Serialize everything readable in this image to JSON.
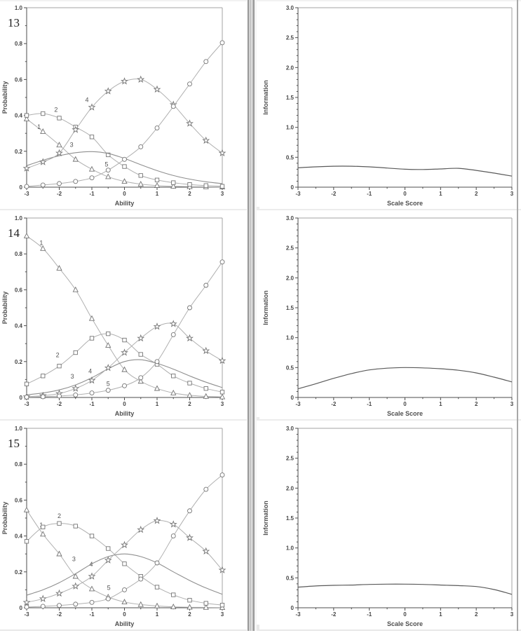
{
  "page": {
    "background": "#ffffff"
  },
  "colors": {
    "axis": "#4d4d4d",
    "frame": "#a3a3a3",
    "marker_stroke": "#747474",
    "marker_fill": "#ffffff",
    "marker_series_line": "#b0b0b0",
    "smooth_series_line": "#8f8f8f",
    "info_series_line": "#5a5a5a",
    "tick_text": "#454545",
    "axis_title_text": "#4f4f4f",
    "curve_label_text": "#555555",
    "item_number_text": "#1f1f1f"
  },
  "chart_data": [
    {
      "name": "item-13-category-curves",
      "type": "line",
      "item_label": "13",
      "xlabel": "Ability",
      "ylabel": "Probability",
      "xlim": [
        -3,
        3
      ],
      "ylim": [
        0,
        1
      ],
      "x_tick_values": [
        -3,
        -2,
        -1,
        0,
        1,
        2,
        3
      ],
      "x_tick_labels": [
        "-3",
        "-2",
        "-1",
        "0",
        "1",
        "2",
        "3"
      ],
      "y_tick_values": [
        0,
        0.2,
        0.4,
        0.6,
        0.8,
        1.0
      ],
      "y_tick_labels": [
        "0",
        "0.2",
        "0.4",
        "0.6",
        "0.8",
        "1.0"
      ],
      "x_minor_step": 0.5,
      "y_minor_step": 0.1,
      "grid": false,
      "legend": "none",
      "x": [
        -3,
        -2.5,
        -2,
        -1.5,
        -1,
        -0.5,
        0,
        0.5,
        1,
        1.5,
        2,
        2.5,
        3
      ],
      "series": [
        {
          "name": "1",
          "marker": "triangle",
          "values": [
            0.38,
            0.31,
            0.235,
            0.155,
            0.1,
            0.058,
            0.032,
            0.017,
            0.009,
            0.005,
            0.003,
            0.002,
            0.001
          ],
          "label_at": [
            -2.62,
            0.325
          ]
        },
        {
          "name": "2",
          "marker": "square",
          "values": [
            0.4,
            0.41,
            0.385,
            0.335,
            0.28,
            0.18,
            0.115,
            0.065,
            0.04,
            0.025,
            0.015,
            0.009,
            0.005
          ],
          "label_at": [
            -2.1,
            0.42
          ]
        },
        {
          "name": "3",
          "marker": "none",
          "values": [
            0.12,
            0.15,
            0.175,
            0.192,
            0.198,
            0.188,
            0.16,
            0.125,
            0.092,
            0.065,
            0.045,
            0.03,
            0.02
          ],
          "label_at": [
            -1.62,
            0.225
          ]
        },
        {
          "name": "4",
          "marker": "star",
          "values": [
            0.105,
            0.14,
            0.19,
            0.32,
            0.445,
            0.535,
            0.59,
            0.6,
            0.545,
            0.46,
            0.355,
            0.26,
            0.19
          ],
          "label_at": [
            -1.15,
            0.475
          ]
        },
        {
          "name": "5",
          "marker": "circle",
          "values": [
            0.004,
            0.012,
            0.02,
            0.032,
            0.052,
            0.095,
            0.155,
            0.225,
            0.33,
            0.45,
            0.575,
            0.7,
            0.805
          ],
          "label_at": [
            -0.55,
            0.115
          ]
        }
      ]
    },
    {
      "name": "item-13-information",
      "type": "line",
      "xlabel": "Scale Score",
      "ylabel": "Information",
      "xlim": [
        -3,
        3
      ],
      "ylim": [
        0,
        3
      ],
      "x_tick_values": [
        -3,
        -2,
        -1,
        0,
        1,
        2,
        3
      ],
      "x_tick_labels": [
        "-3",
        "-2",
        "-1",
        "0",
        "1",
        "2",
        "3"
      ],
      "y_tick_values": [
        0,
        0.5,
        1.0,
        1.5,
        2.0,
        2.5,
        3.0
      ],
      "y_tick_labels": [
        "0",
        "0.5",
        "1.0",
        "1.5",
        "2.0",
        "2.5",
        "3.0"
      ],
      "x_minor_step": 0.5,
      "y_minor_step": 0.1,
      "grid": false,
      "legend": "none",
      "x": [
        -3,
        -2.5,
        -2,
        -1.5,
        -1,
        -0.5,
        0,
        0.5,
        1,
        1.5,
        2,
        2.5,
        3
      ],
      "series": [
        {
          "name": "Information",
          "marker": "none",
          "values": [
            0.325,
            0.34,
            0.35,
            0.35,
            0.34,
            0.32,
            0.3,
            0.295,
            0.305,
            0.315,
            0.28,
            0.235,
            0.185
          ]
        }
      ]
    },
    {
      "name": "item-14-category-curves",
      "type": "line",
      "item_label": "14",
      "xlabel": "Ability",
      "ylabel": "Probability",
      "xlim": [
        -3,
        3
      ],
      "ylim": [
        0,
        1
      ],
      "x_tick_values": [
        -3,
        -2,
        -1,
        0,
        1,
        2,
        3
      ],
      "x_tick_labels": [
        "-3",
        "-2",
        "-1",
        "0",
        "1",
        "2",
        "3"
      ],
      "y_tick_values": [
        0,
        0.2,
        0.4,
        0.6,
        0.8,
        1.0
      ],
      "y_tick_labels": [
        "0",
        "0.2",
        "0.4",
        "0.6",
        "0.8",
        "1.0"
      ],
      "x_minor_step": 0.5,
      "y_minor_step": 0.1,
      "grid": false,
      "legend": "none",
      "x": [
        -3,
        -2.5,
        -2,
        -1.5,
        -1,
        -0.5,
        0,
        0.5,
        1,
        1.5,
        2,
        2.5,
        3
      ],
      "series": [
        {
          "name": "1",
          "marker": "triangle",
          "values": [
            0.9,
            0.83,
            0.72,
            0.6,
            0.44,
            0.29,
            0.155,
            0.09,
            0.05,
            0.025,
            0.012,
            0.006,
            0.003
          ],
          "label_at": [
            -2.55,
            0.85
          ]
        },
        {
          "name": "2",
          "marker": "square",
          "values": [
            0.075,
            0.12,
            0.175,
            0.25,
            0.33,
            0.355,
            0.32,
            0.24,
            0.185,
            0.12,
            0.08,
            0.05,
            0.03
          ],
          "label_at": [
            -2.05,
            0.225
          ]
        },
        {
          "name": "3",
          "marker": "none",
          "values": [
            0.015,
            0.025,
            0.042,
            0.07,
            0.11,
            0.16,
            0.2,
            0.21,
            0.19,
            0.158,
            0.12,
            0.085,
            0.055
          ],
          "label_at": [
            -1.6,
            0.105
          ]
        },
        {
          "name": "4",
          "marker": "star",
          "values": [
            0.004,
            0.01,
            0.022,
            0.05,
            0.095,
            0.165,
            0.25,
            0.33,
            0.395,
            0.41,
            0.33,
            0.26,
            0.205
          ],
          "label_at": [
            -1.05,
            0.135
          ]
        },
        {
          "name": "5",
          "marker": "circle",
          "values": [
            0.002,
            0.004,
            0.008,
            0.014,
            0.025,
            0.04,
            0.065,
            0.11,
            0.2,
            0.35,
            0.5,
            0.625,
            0.755
          ],
          "label_at": [
            -0.5,
            0.065
          ]
        }
      ]
    },
    {
      "name": "item-14-information",
      "type": "line",
      "xlabel": "Scale Score",
      "ylabel": "Information",
      "xlim": [
        -3,
        3
      ],
      "ylim": [
        0,
        3
      ],
      "x_tick_values": [
        -3,
        -2,
        -1,
        0,
        1,
        2,
        3
      ],
      "x_tick_labels": [
        "-3",
        "-2",
        "-1",
        "0",
        "1",
        "2",
        "3"
      ],
      "y_tick_values": [
        0,
        0.5,
        1.0,
        1.5,
        2.0,
        2.5,
        3.0
      ],
      "y_tick_labels": [
        "0",
        "0.5",
        "1.0",
        "1.5",
        "2.0",
        "2.5",
        "3.0"
      ],
      "x_minor_step": 0.5,
      "y_minor_step": 0.1,
      "grid": false,
      "legend": "none",
      "x": [
        -3,
        -2.5,
        -2,
        -1.5,
        -1,
        -0.5,
        0,
        0.5,
        1,
        1.5,
        2,
        2.5,
        3
      ],
      "series": [
        {
          "name": "Information",
          "marker": "none",
          "values": [
            0.145,
            0.23,
            0.32,
            0.4,
            0.46,
            0.49,
            0.5,
            0.495,
            0.48,
            0.455,
            0.41,
            0.34,
            0.26
          ]
        }
      ]
    },
    {
      "name": "item-15-category-curves",
      "type": "line",
      "item_label": "15",
      "xlabel": "Ability",
      "ylabel": "Probability",
      "xlim": [
        -3,
        3
      ],
      "ylim": [
        0,
        1
      ],
      "x_tick_values": [
        -3,
        -2,
        -1,
        0,
        1,
        2,
        3
      ],
      "x_tick_labels": [
        "-3",
        "-2",
        "-1",
        "0",
        "1",
        "2",
        "3"
      ],
      "y_tick_values": [
        0,
        0.2,
        0.4,
        0.6,
        0.8,
        1.0
      ],
      "y_tick_labels": [
        "0",
        "0.2",
        "0.4",
        "0.6",
        "0.8",
        "1.0"
      ],
      "x_minor_step": 0.5,
      "y_minor_step": 0.1,
      "grid": false,
      "legend": "none",
      "x": [
        -3,
        -2.5,
        -2,
        -1.5,
        -1,
        -0.5,
        0,
        0.5,
        1,
        1.5,
        2,
        2.5,
        3
      ],
      "series": [
        {
          "name": "1",
          "marker": "triangle",
          "values": [
            0.545,
            0.41,
            0.3,
            0.175,
            0.105,
            0.06,
            0.032,
            0.018,
            0.01,
            0.005,
            0.003,
            0.002,
            0.001
          ],
          "label_at": [
            -2.55,
            0.45
          ]
        },
        {
          "name": "2",
          "marker": "square",
          "values": [
            0.37,
            0.45,
            0.47,
            0.455,
            0.4,
            0.33,
            0.245,
            0.175,
            0.115,
            0.072,
            0.042,
            0.025,
            0.015
          ],
          "label_at": [
            -2.0,
            0.5
          ]
        },
        {
          "name": "3",
          "marker": "none",
          "values": [
            0.07,
            0.1,
            0.14,
            0.19,
            0.245,
            0.285,
            0.3,
            0.285,
            0.25,
            0.2,
            0.152,
            0.11,
            0.075
          ],
          "label_at": [
            -1.55,
            0.26
          ]
        },
        {
          "name": "4",
          "marker": "star",
          "values": [
            0.03,
            0.05,
            0.08,
            0.12,
            0.175,
            0.265,
            0.35,
            0.435,
            0.485,
            0.465,
            0.39,
            0.315,
            0.21
          ],
          "label_at": [
            -1.02,
            0.23
          ]
        },
        {
          "name": "5",
          "marker": "circle",
          "values": [
            0.004,
            0.008,
            0.013,
            0.02,
            0.03,
            0.05,
            0.1,
            0.16,
            0.25,
            0.4,
            0.54,
            0.66,
            0.74
          ],
          "label_at": [
            -0.48,
            0.1
          ]
        }
      ]
    },
    {
      "name": "item-15-information",
      "type": "line",
      "xlabel": "Scale Score",
      "ylabel": "Information",
      "xlim": [
        -3,
        3
      ],
      "ylim": [
        0,
        3
      ],
      "x_tick_values": [
        -3,
        -2,
        -1,
        0,
        1,
        2,
        3
      ],
      "x_tick_labels": [
        "-3",
        "-2",
        "-1",
        "0",
        "1",
        "2",
        "3"
      ],
      "y_tick_values": [
        0,
        0.5,
        1.0,
        1.5,
        2.0,
        2.5,
        3.0
      ],
      "y_tick_labels": [
        "0",
        "0.5",
        "1.0",
        "1.5",
        "2.0",
        "2.5",
        "3.0"
      ],
      "x_minor_step": 0.5,
      "y_minor_step": 0.1,
      "grid": false,
      "legend": "none",
      "x": [
        -3,
        -2.5,
        -2,
        -1.5,
        -1,
        -0.5,
        0,
        0.5,
        1,
        1.5,
        2,
        2.5,
        3
      ],
      "series": [
        {
          "name": "Information",
          "marker": "none",
          "values": [
            0.345,
            0.365,
            0.375,
            0.38,
            0.39,
            0.395,
            0.395,
            0.39,
            0.38,
            0.37,
            0.355,
            0.305,
            0.225
          ]
        }
      ]
    }
  ]
}
